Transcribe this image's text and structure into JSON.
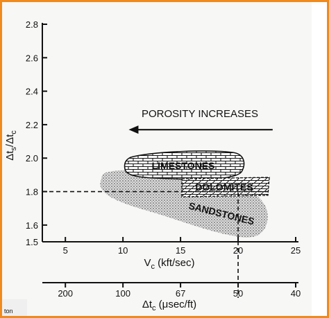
{
  "chart_data": {
    "type": "scatter",
    "y_axis": {
      "title_main": "Δt",
      "title_sub1": "s",
      "title_mid": "/Δt",
      "title_sub2": "c",
      "range": [
        1.5,
        2.8
      ],
      "ticks": [
        "1.5",
        "1.6",
        "1.8",
        "2.0",
        "2.2",
        "2.4",
        "2.6",
        "2.8"
      ],
      "tick_values": [
        1.5,
        1.6,
        1.8,
        2.0,
        2.2,
        2.4,
        2.6,
        2.8
      ]
    },
    "x_axis_vc": {
      "title_main": "V",
      "title_sub": "c",
      "title_rest": " (kft/sec)",
      "range": [
        3,
        25
      ],
      "ticks": [
        "5",
        "10",
        "15",
        "20",
        "25"
      ],
      "tick_values": [
        5,
        10,
        15,
        20,
        25
      ]
    },
    "x_axis_dt": {
      "title_main": "Δt",
      "title_sub": "c",
      "title_rest": " (μsec/ft)",
      "ticks": [
        "200",
        "100",
        "67",
        "50",
        "40"
      ],
      "tick_positions_vc": [
        5,
        10,
        15,
        20,
        25
      ]
    },
    "annotation": {
      "text": "POROSITY INCREASES",
      "arrow_from_vc": 23,
      "arrow_to_vc": 10.5,
      "y": 2.17
    },
    "reference_lines": {
      "y": 1.8,
      "x_vc": 20
    },
    "regions": [
      {
        "name": "LIMESTONES",
        "vc_range": [
          12,
          18.5
        ],
        "y_range": [
          1.82,
          1.97
        ]
      },
      {
        "name": "DOLOMITES",
        "vc_range": [
          15.5,
          22.5
        ],
        "y_range": [
          1.67,
          1.81
        ]
      },
      {
        "name": "SANDSTONES",
        "vc_range": [
          7.5,
          22.5
        ],
        "y_range": [
          1.5,
          1.85
        ]
      }
    ]
  },
  "corner_text": "ton"
}
